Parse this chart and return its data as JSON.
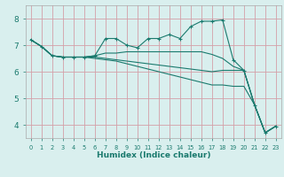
{
  "title": "",
  "xlabel": "Humidex (Indice chaleur)",
  "ylabel": "",
  "xlim": [
    -0.5,
    23.5
  ],
  "ylim": [
    3.5,
    8.5
  ],
  "xticks": [
    0,
    1,
    2,
    3,
    4,
    5,
    6,
    7,
    8,
    9,
    10,
    11,
    12,
    13,
    14,
    15,
    16,
    17,
    18,
    19,
    20,
    21,
    22,
    23
  ],
  "yticks": [
    4,
    5,
    6,
    7,
    8
  ],
  "background_color": "#d9efee",
  "grid_color": "#d4a0a8",
  "line_color": "#1a7a6e",
  "xlabel_color": "#1a7a6e",
  "tick_color": "#1a7a6e",
  "lines": [
    {
      "x": [
        0,
        1,
        2,
        3,
        4,
        5,
        6,
        7,
        8,
        9,
        10,
        11,
        12,
        13,
        14,
        15,
        16,
        17,
        18,
        19,
        20,
        21,
        22,
        23
      ],
      "y": [
        7.2,
        6.95,
        6.6,
        6.55,
        6.55,
        6.55,
        6.6,
        7.25,
        7.25,
        7.0,
        6.9,
        7.25,
        7.25,
        7.4,
        7.25,
        7.7,
        7.9,
        7.9,
        7.95,
        6.45,
        6.05,
        4.75,
        3.7,
        3.95
      ],
      "marker": true
    },
    {
      "x": [
        0,
        1,
        2,
        3,
        4,
        5,
        6,
        7,
        8,
        9,
        10,
        11,
        12,
        13,
        14,
        15,
        16,
        17,
        18,
        19,
        20,
        21,
        22,
        23
      ],
      "y": [
        7.2,
        6.95,
        6.6,
        6.55,
        6.55,
        6.55,
        6.6,
        6.7,
        6.7,
        6.75,
        6.75,
        6.75,
        6.75,
        6.75,
        6.75,
        6.75,
        6.75,
        6.65,
        6.5,
        6.2,
        6.05,
        4.75,
        3.7,
        3.95
      ],
      "marker": false
    },
    {
      "x": [
        0,
        1,
        2,
        3,
        4,
        5,
        6,
        7,
        8,
        9,
        10,
        11,
        12,
        13,
        14,
        15,
        16,
        17,
        18,
        19,
        20,
        21,
        22,
        23
      ],
      "y": [
        7.2,
        6.95,
        6.6,
        6.55,
        6.55,
        6.55,
        6.55,
        6.5,
        6.45,
        6.4,
        6.35,
        6.3,
        6.25,
        6.2,
        6.15,
        6.1,
        6.05,
        6.0,
        6.05,
        6.05,
        6.05,
        4.75,
        3.7,
        3.95
      ],
      "marker": false
    },
    {
      "x": [
        0,
        1,
        2,
        3,
        4,
        5,
        6,
        7,
        8,
        9,
        10,
        11,
        12,
        13,
        14,
        15,
        16,
        17,
        18,
        19,
        20,
        21,
        22,
        23
      ],
      "y": [
        7.2,
        6.95,
        6.6,
        6.55,
        6.55,
        6.55,
        6.5,
        6.45,
        6.4,
        6.3,
        6.2,
        6.1,
        6.0,
        5.9,
        5.8,
        5.7,
        5.6,
        5.5,
        5.5,
        5.45,
        5.45,
        4.75,
        3.7,
        3.95
      ],
      "marker": false
    }
  ]
}
